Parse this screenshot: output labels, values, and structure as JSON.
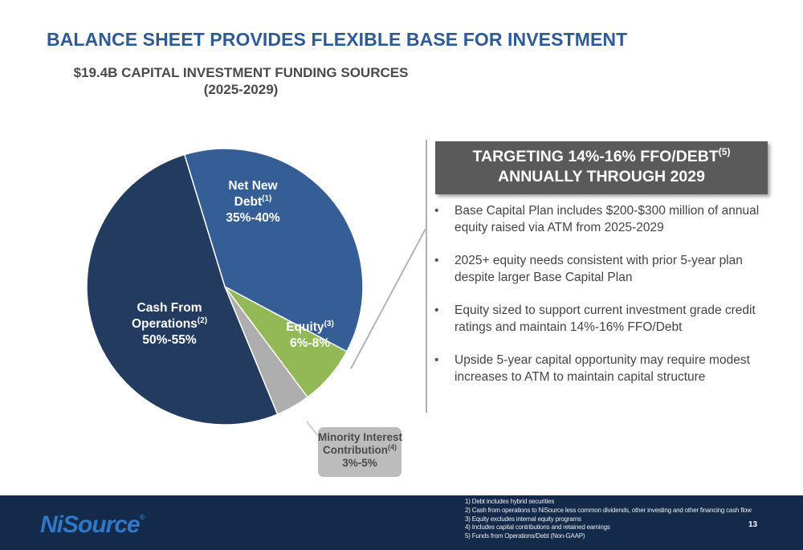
{
  "slide": {
    "title": "BALANCE SHEET PROVIDES FLEXIBLE BASE FOR INVESTMENT",
    "page_number": "13"
  },
  "chart_data": {
    "type": "pie",
    "title_lines": [
      "$19.4B CAPITAL INVESTMENT FUNDING SOURCES",
      "(2025-2029)"
    ],
    "slices": [
      {
        "label": "Net New Debt",
        "footnote": "(1)",
        "range": "35%-40%",
        "value": 37.5,
        "color": "#355e97"
      },
      {
        "label": "Equity",
        "footnote": "(3)",
        "range": "6%-8%",
        "value": 7,
        "color": "#93b957"
      },
      {
        "label": "Minority Interest Contribution",
        "footnote": "(4)",
        "range": "3%-5%",
        "value": 4,
        "color": "#aeaeae"
      },
      {
        "label": "Cash From Operations",
        "footnote": "(2)",
        "range": "50%-55%",
        "value": 51.5,
        "color": "#233b5f"
      }
    ],
    "slice_labels": {
      "debt": {
        "line1": "Net New",
        "line2": "Debt",
        "sup": "(1)",
        "range": "35%-40%"
      },
      "equity": {
        "line1": "Equity",
        "sup": "(3)",
        "range": "6%-8%"
      },
      "cfo": {
        "line1": "Cash From",
        "line2": "Operations",
        "sup": "(2)",
        "range": "50%-55%"
      },
      "minority": {
        "line1": "Minority Interest",
        "line2": "Contribution",
        "sup": "(4)",
        "range": "3%-5%"
      }
    }
  },
  "callout": {
    "line1": "TARGETING 14%-16% FFO/DEBT",
    "sup": "(5)",
    "line2": "ANNUALLY THROUGH 2029"
  },
  "bullets": [
    "Base Capital Plan includes $200-$300 million of annual equity raised via ATM from 2025-2029",
    "2025+ equity needs consistent with prior 5-year plan despite larger Base Capital Plan",
    "Equity sized to support current investment grade credit ratings and maintain 14%-16% FFO/Debt",
    "Upside 5-year capital opportunity may require modest increases to ATM to maintain capital structure"
  ],
  "footer": {
    "logo_text": "NiSource",
    "logo_mark": "®",
    "footnotes": [
      "1) Debt includes hybrid securities",
      "2) Cash from operations to NiSource less common dividends, other investing and other financing cash flow",
      "3) Equity excludes internal equity programs",
      "4) Includes capital contributions and retained earnings",
      "5) Funds from Operations/Debt (Non-GAAP)"
    ]
  }
}
